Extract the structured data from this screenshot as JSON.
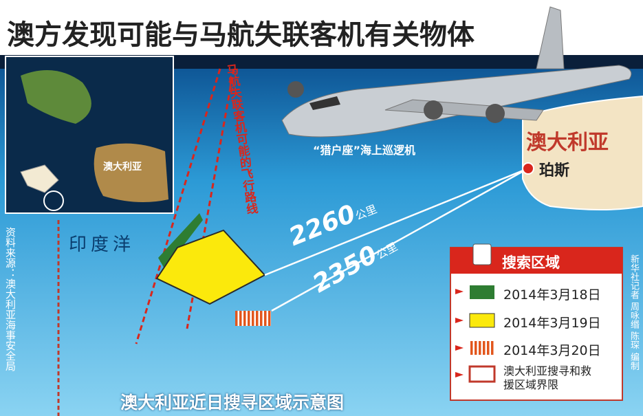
{
  "title": "澳方发现可能与马航失联客机有关物体",
  "inset_label": "澳大利亚",
  "plane_caption": "“猎户座”海上巡逻机",
  "region_label": "澳大利亚",
  "city": "珀斯",
  "ocean": "印度洋",
  "flight_path": "马航失联客机可能的飞行路线",
  "distances": [
    {
      "value": 2260,
      "unit": "公里"
    },
    {
      "value": 2350,
      "unit": "公里"
    }
  ],
  "legend": {
    "title": "搜索区域",
    "items": [
      "2014年3月18日",
      "2014年3月19日",
      "2014年3月20日",
      "澳大利亚搜寻和救援区域界限"
    ]
  },
  "source": "资料来源：澳大利亚海事安全局",
  "credit": "新华社记者 周咏缗 陈琛 编制",
  "caption": "澳大利亚近日搜寻区域示意图"
}
